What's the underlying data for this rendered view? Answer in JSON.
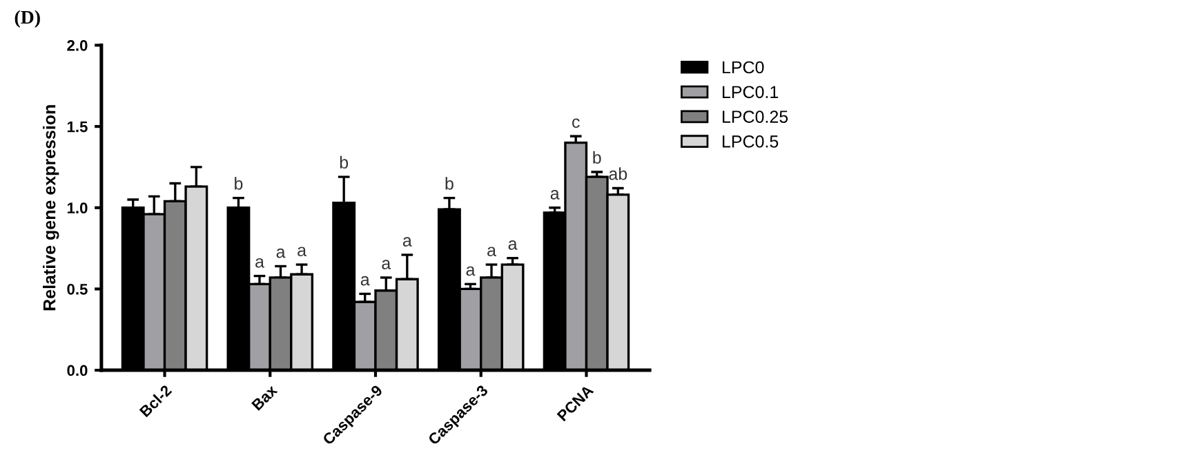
{
  "chart_data": {
    "type": "bar",
    "title": "(D)",
    "ylabel": "Relative gene expression",
    "categories": [
      "Bcl-2",
      "Bax",
      "Caspase-9",
      "Caspase-3",
      "PCNA"
    ],
    "series": [
      {
        "name": "LPC0",
        "color": "#000000",
        "values": [
          1.0,
          1.0,
          1.03,
          0.99,
          0.97
        ],
        "errors": [
          [
            1.0,
            1.05
          ],
          [
            1.0,
            1.06
          ],
          [
            1.03,
            1.19
          ],
          [
            0.99,
            1.06
          ],
          [
            0.97,
            1.0
          ]
        ],
        "value_labels": [
          null,
          "b",
          "b",
          "b",
          "a"
        ]
      },
      {
        "name": "LPC0.1",
        "color": "#a0a0a4",
        "values": [
          0.96,
          0.53,
          0.42,
          0.5,
          1.4
        ],
        "errors": [
          [
            0.96,
            1.07
          ],
          [
            0.53,
            0.58
          ],
          [
            0.42,
            0.47
          ],
          [
            0.5,
            0.53
          ],
          [
            1.4,
            1.44
          ]
        ],
        "value_labels": [
          null,
          "a",
          "a",
          "a",
          "c"
        ]
      },
      {
        "name": "LPC0.25",
        "color": "#808080",
        "values": [
          1.04,
          0.57,
          0.49,
          0.57,
          1.19
        ],
        "errors": [
          [
            1.04,
            1.15
          ],
          [
            0.57,
            0.64
          ],
          [
            0.49,
            0.57
          ],
          [
            0.57,
            0.65
          ],
          [
            1.19,
            1.22
          ]
        ],
        "value_labels": [
          null,
          "a",
          "a",
          "a",
          "b"
        ]
      },
      {
        "name": "LPC0.5",
        "color": "#d6d6d6",
        "values": [
          1.13,
          0.59,
          0.56,
          0.65,
          1.08
        ],
        "errors": [
          [
            1.13,
            1.25
          ],
          [
            0.59,
            0.65
          ],
          [
            0.56,
            0.71
          ],
          [
            0.65,
            0.69
          ],
          [
            1.08,
            1.12
          ]
        ],
        "value_labels": [
          null,
          "a",
          "a",
          "a",
          "ab"
        ]
      }
    ],
    "ylim": [
      0,
      2.0
    ],
    "yticks": [
      {
        "value": 0,
        "label": "0.0"
      },
      {
        "value": 0.5,
        "label": "0.5"
      },
      {
        "value": 1.0,
        "label": "1.0"
      },
      {
        "value": 1.5,
        "label": "1.5"
      },
      {
        "value": 2.0,
        "label": "2.0"
      }
    ],
    "grid": false,
    "legend": "right"
  }
}
